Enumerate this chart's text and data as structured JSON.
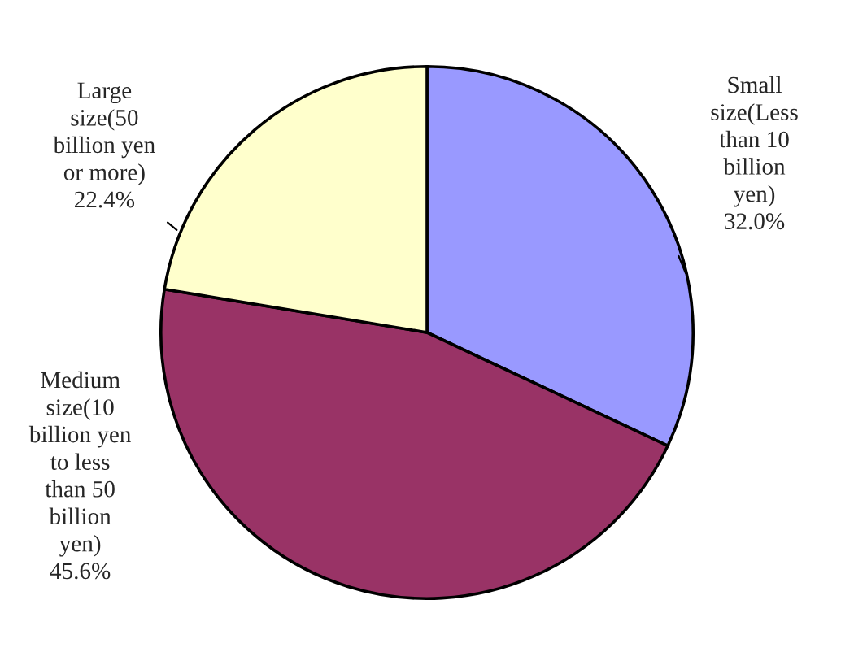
{
  "chart_data": {
    "type": "pie",
    "categories": [
      "Small size(Less than 10 billion yen)",
      "Medium size(10 billion yen to less than 50 billion yen)",
      "Large size(50 billion yen or more)"
    ],
    "values": [
      32.0,
      45.6,
      22.4
    ],
    "colors": [
      "#9999ff",
      "#993366",
      "#ffffcc"
    ],
    "value_labels": [
      "32.0%",
      "45.6%",
      "22.4%"
    ]
  }
}
